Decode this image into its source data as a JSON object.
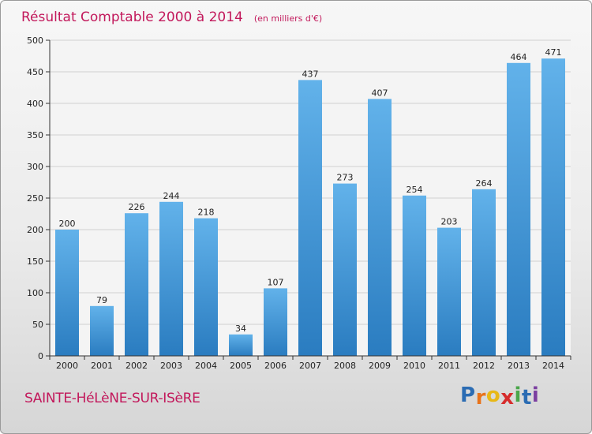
{
  "colors": {
    "accent": "#c2185b",
    "bar_light": "#62b2ea",
    "bar_dark": "#2a7cc0"
  },
  "chart_data": {
    "type": "bar",
    "title": "Résultat Comptable 2000 à 2014",
    "subtitle": "(en milliers d'€)",
    "xlabel": "",
    "ylabel": "",
    "categories": [
      "2000",
      "2001",
      "2002",
      "2003",
      "2004",
      "2005",
      "2006",
      "2007",
      "2008",
      "2009",
      "2010",
      "2011",
      "2012",
      "2013",
      "2014"
    ],
    "values": [
      200,
      79,
      226,
      244,
      218,
      34,
      107,
      437,
      273,
      407,
      254,
      203,
      264,
      464,
      471
    ],
    "ylim": [
      0,
      500
    ],
    "yticks": [
      0,
      50,
      100,
      150,
      200,
      250,
      300,
      350,
      400,
      450,
      500
    ],
    "grid": true
  },
  "footer": {
    "place_name": "SAINTE-HéLèNE-SUR-ISèRE",
    "logo_text": "Proxiti",
    "logo_letters": [
      {
        "ch": "P",
        "color": "#2b6cb3"
      },
      {
        "ch": "r",
        "color": "#e8731b"
      },
      {
        "ch": "o",
        "color": "#e8b817"
      },
      {
        "ch": "x",
        "color": "#d62c2c"
      },
      {
        "ch": "i",
        "color": "#4aa64a"
      },
      {
        "ch": "t",
        "color": "#2b6cb3"
      },
      {
        "ch": "i",
        "color": "#7b3fa0"
      }
    ]
  }
}
